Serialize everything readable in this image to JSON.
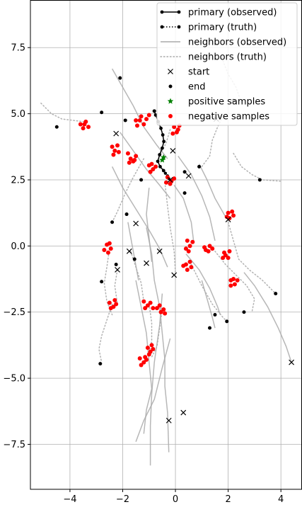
{
  "chart_data": {
    "type": "scatter",
    "title": "",
    "xlabel": "",
    "ylabel": "",
    "xlim": [
      -5.5,
      4.8
    ],
    "ylim": [
      -9.2,
      9.3
    ],
    "grid": true,
    "legend_position": "top-right",
    "x_ticks": [
      {
        "value": -4,
        "label": "−4"
      },
      {
        "value": -2,
        "label": "−2"
      },
      {
        "value": 0,
        "label": "0"
      },
      {
        "value": 2,
        "label": "2"
      },
      {
        "value": 4,
        "label": "4"
      }
    ],
    "y_ticks": [
      {
        "value": 7.5,
        "label": "7.5"
      },
      {
        "value": 5.0,
        "label": "5.0"
      },
      {
        "value": 2.5,
        "label": "2.5"
      },
      {
        "value": 0.0,
        "label": "0.0"
      },
      {
        "value": -2.5,
        "label": "−2.5"
      },
      {
        "value": -5.0,
        "label": "−5.0"
      },
      {
        "value": -7.5,
        "label": "−7.5"
      }
    ],
    "legend": [
      {
        "key": "primary_observed",
        "label": "primary (observed)"
      },
      {
        "key": "primary_truth",
        "label": "primary (truth)"
      },
      {
        "key": "neighbors_observed",
        "label": "neighbors (observed)"
      },
      {
        "key": "neighbors_truth",
        "label": "neighbors (truth)"
      },
      {
        "key": "start",
        "label": "start"
      },
      {
        "key": "end",
        "label": "end"
      },
      {
        "key": "positive",
        "label": "positive samples"
      },
      {
        "key": "negative",
        "label": "negative samples"
      }
    ],
    "colors": {
      "primary": "#000000",
      "neighbor": "#aaaaaa",
      "start": "#000000",
      "end": "#000000",
      "positive": "#008000",
      "negative": "#ff0000",
      "grid": "#b0b0b0"
    },
    "primary_observed": [
      [
        -0.8,
        5.1
      ],
      [
        -0.75,
        4.95
      ],
      [
        -0.65,
        4.7
      ],
      [
        -0.55,
        4.45
      ],
      [
        -0.48,
        4.2
      ],
      [
        -0.44,
        3.95
      ],
      [
        -0.5,
        3.7
      ],
      [
        -0.6,
        3.45
      ],
      [
        -0.67,
        3.2
      ],
      [
        -0.58,
        3.0
      ],
      [
        -0.45,
        2.85
      ]
    ],
    "primary_truth": [
      [
        -0.45,
        2.85
      ],
      [
        -0.38,
        2.75
      ],
      [
        -0.3,
        2.65
      ],
      [
        -0.25,
        2.55
      ]
    ],
    "neighbors_observed": [
      [
        [
          -2.4,
          6.7
        ],
        [
          -2.0,
          6.0
        ],
        [
          -1.6,
          5.3
        ],
        [
          -1.2,
          4.5
        ],
        [
          -0.7,
          3.8
        ],
        [
          -0.3,
          3.3
        ]
      ],
      [
        [
          -2.1,
          4.3
        ],
        [
          -1.6,
          3.6
        ],
        [
          -1.1,
          2.9
        ],
        [
          -0.6,
          2.3
        ],
        [
          -0.2,
          1.8
        ]
      ],
      [
        [
          -2.4,
          3.0
        ],
        [
          -2.0,
          2.2
        ],
        [
          -1.5,
          1.4
        ],
        [
          -1.0,
          0.6
        ],
        [
          -0.6,
          -0.1
        ],
        [
          -0.3,
          -0.8
        ]
      ],
      [
        [
          -1.0,
          2.2
        ],
        [
          -1.1,
          1.2
        ],
        [
          -1.0,
          0.3
        ],
        [
          -0.9,
          -0.6
        ]
      ],
      [
        [
          -1.8,
          0.9
        ],
        [
          -1.6,
          -0.2
        ],
        [
          -1.4,
          -1.3
        ]
      ],
      [
        [
          -0.05,
          2.3
        ],
        [
          0.3,
          1.8
        ],
        [
          0.6,
          0.9
        ],
        [
          0.7,
          0.1
        ]
      ],
      [
        [
          0.1,
          3.4
        ],
        [
          0.6,
          2.7
        ],
        [
          1.0,
          1.9
        ],
        [
          1.3,
          1.1
        ],
        [
          1.5,
          0.2
        ]
      ],
      [
        [
          0.9,
          3.1
        ],
        [
          1.2,
          2.5
        ],
        [
          1.5,
          1.8
        ],
        [
          1.9,
          1.1
        ]
      ],
      [
        [
          0.4,
          -0.3
        ],
        [
          0.9,
          -0.9
        ],
        [
          1.3,
          -1.6
        ],
        [
          1.6,
          -2.3
        ],
        [
          1.7,
          -2.6
        ]
      ],
      [
        [
          1.0,
          -1.3
        ],
        [
          1.2,
          -2.0
        ],
        [
          1.4,
          -2.7
        ],
        [
          1.5,
          -3.1
        ]
      ],
      [
        [
          2.6,
          -1.0
        ],
        [
          3.0,
          -1.5
        ],
        [
          3.5,
          -2.3
        ],
        [
          3.9,
          -3.1
        ],
        [
          4.2,
          -3.8
        ],
        [
          4.4,
          -4.4
        ]
      ],
      [
        [
          -1.1,
          0.7
        ],
        [
          -0.9,
          -0.3
        ],
        [
          -0.8,
          -1.3
        ],
        [
          -0.6,
          -2.3
        ],
        [
          -0.5,
          -3.3
        ],
        [
          -0.4,
          -4.3
        ],
        [
          -0.4,
          -5.3
        ],
        [
          -0.3,
          -6.3
        ],
        [
          -0.25,
          -7.8
        ]
      ],
      [
        [
          -1.5,
          -1.3
        ],
        [
          -1.3,
          -2.3
        ],
        [
          -1.1,
          -3.3
        ],
        [
          -1.0,
          -4.4
        ],
        [
          -0.9,
          -5.4
        ],
        [
          -1.1,
          -6.2
        ],
        [
          -1.2,
          -7.1
        ]
      ],
      [
        [
          -0.5,
          -1.8
        ],
        [
          -0.6,
          -3.0
        ],
        [
          -0.8,
          -4.4
        ],
        [
          -0.9,
          -5.6
        ],
        [
          -0.95,
          -6.8
        ],
        [
          -0.95,
          -8.3
        ]
      ],
      [
        [
          -0.2,
          -3.5
        ],
        [
          -0.5,
          -4.6
        ],
        [
          -0.8,
          -5.8
        ],
        [
          -1.2,
          -6.6
        ],
        [
          -1.5,
          -7.4
        ]
      ]
    ],
    "neighbors_truth": [
      [
        [
          -5.1,
          5.4
        ],
        [
          -4.7,
          5.0
        ],
        [
          -4.3,
          4.8
        ],
        [
          -3.9,
          4.75
        ],
        [
          -3.5,
          4.7
        ]
      ],
      [
        [
          1.8,
          7.0
        ],
        [
          2.0,
          6.5
        ],
        [
          2.3,
          6.0
        ],
        [
          2.5,
          5.4
        ]
      ],
      [
        [
          1.8,
          4.9
        ],
        [
          1.6,
          4.5
        ],
        [
          1.4,
          4.0
        ],
        [
          1.3,
          3.4
        ],
        [
          1.0,
          3.0
        ]
      ],
      [
        [
          2.2,
          3.5
        ],
        [
          2.5,
          3.0
        ],
        [
          2.9,
          2.7
        ],
        [
          3.3,
          2.5
        ],
        [
          4.0,
          2.45
        ]
      ],
      [
        [
          2.0,
          0.9
        ],
        [
          2.2,
          0.2
        ],
        [
          2.4,
          -0.5
        ],
        [
          2.8,
          -0.9
        ],
        [
          3.3,
          -1.3
        ],
        [
          3.8,
          -1.8
        ]
      ],
      [
        [
          1.5,
          -0.2
        ],
        [
          1.9,
          -0.7
        ],
        [
          2.3,
          -1.1
        ],
        [
          2.7,
          -1.5
        ],
        [
          3.0,
          -2.0
        ],
        [
          2.9,
          -2.5
        ]
      ],
      [
        [
          0.6,
          -0.7
        ],
        [
          1.0,
          -1.5
        ],
        [
          1.4,
          -2.2
        ],
        [
          1.8,
          -2.7
        ],
        [
          2.0,
          -2.9
        ]
      ],
      [
        [
          -0.4,
          2.4
        ],
        [
          -0.3,
          1.5
        ],
        [
          -0.2,
          0.7
        ],
        [
          -0.05,
          -0.2
        ],
        [
          0.0,
          -1.0
        ]
      ],
      [
        [
          -1.2,
          3.3
        ],
        [
          -1.6,
          2.6
        ],
        [
          -1.9,
          2.0
        ],
        [
          -2.2,
          1.3
        ],
        [
          -2.4,
          0.9
        ]
      ],
      [
        [
          -2.5,
          -0.1
        ],
        [
          -2.6,
          -0.8
        ],
        [
          -2.7,
          -1.4
        ],
        [
          -2.6,
          -2.1
        ],
        [
          -2.4,
          -2.6
        ]
      ],
      [
        [
          -2.4,
          -2.2
        ],
        [
          -2.6,
          -2.8
        ],
        [
          -2.8,
          -3.4
        ],
        [
          -2.9,
          -3.9
        ],
        [
          -2.8,
          -4.4
        ]
      ],
      [
        [
          -2.2,
          -0.9
        ],
        [
          -2.3,
          -1.5
        ],
        [
          -2.2,
          -2.2
        ]
      ],
      [
        [
          -1.7,
          -0.2
        ],
        [
          -1.5,
          -0.8
        ],
        [
          -1.3,
          -1.4
        ],
        [
          -1.2,
          -2.1
        ]
      ],
      [
        [
          -1.0,
          -2.2
        ],
        [
          -0.9,
          -2.9
        ],
        [
          -0.9,
          -3.6
        ],
        [
          -1.0,
          -4.0
        ]
      ],
      [
        [
          -0.5,
          -2.4
        ],
        [
          -0.6,
          -3.1
        ],
        [
          -0.7,
          -3.8
        ],
        [
          -0.9,
          -4.2
        ]
      ],
      [
        [
          -0.2,
          4.4
        ],
        [
          -0.35,
          3.9
        ],
        [
          -0.55,
          3.5
        ]
      ]
    ],
    "start_points": [
      [
        -2.25,
        4.25
      ],
      [
        -0.1,
        3.6
      ],
      [
        0.5,
        2.65
      ],
      [
        1.55,
        4.8
      ],
      [
        -0.2,
        2.5
      ],
      [
        2.0,
        1.0
      ],
      [
        -1.5,
        0.85
      ],
      [
        -0.6,
        -0.2
      ],
      [
        -1.75,
        -0.2
      ],
      [
        -2.2,
        -0.9
      ],
      [
        -1.1,
        -0.65
      ],
      [
        -0.05,
        -1.1
      ],
      [
        4.4,
        -4.4
      ],
      [
        0.3,
        -6.3
      ],
      [
        -0.25,
        -6.6
      ]
    ],
    "end_points": [
      [
        -4.5,
        4.5
      ],
      [
        -2.8,
        5.05
      ],
      [
        -2.1,
        6.35
      ],
      [
        -1.9,
        4.75
      ],
      [
        -0.8,
        5.1
      ],
      [
        0.35,
        2.8
      ],
      [
        0.9,
        3.0
      ],
      [
        2.2,
        5.5
      ],
      [
        3.2,
        2.5
      ],
      [
        -1.3,
        2.5
      ],
      [
        0.35,
        2.0
      ],
      [
        -1.85,
        1.2
      ],
      [
        -2.4,
        0.9
      ],
      [
        -1.55,
        -0.5
      ],
      [
        -2.25,
        -0.7
      ],
      [
        -2.8,
        -1.35
      ],
      [
        3.8,
        -1.8
      ],
      [
        2.6,
        -2.5
      ],
      [
        1.5,
        -2.6
      ],
      [
        1.95,
        -2.85
      ],
      [
        1.3,
        -3.1
      ],
      [
        -2.85,
        -4.45
      ]
    ],
    "positive_samples": [
      [
        -0.45,
        3.35
      ],
      [
        -0.5,
        3.25
      ]
    ],
    "negative_samples": [
      [
        -3.6,
        4.6
      ],
      [
        -3.4,
        4.7
      ],
      [
        -3.5,
        4.45
      ],
      [
        -3.3,
        4.5
      ],
      [
        -3.45,
        4.6
      ],
      [
        -1.5,
        4.75
      ],
      [
        -1.3,
        4.9
      ],
      [
        -1.1,
        4.8
      ],
      [
        -1.2,
        4.6
      ],
      [
        -1.45,
        4.55
      ],
      [
        -1.0,
        4.95
      ],
      [
        -1.35,
        4.75
      ],
      [
        -0.05,
        4.5
      ],
      [
        0.1,
        4.4
      ],
      [
        -0.1,
        4.25
      ],
      [
        0.15,
        4.55
      ],
      [
        0.05,
        4.3
      ],
      [
        -2.4,
        3.75
      ],
      [
        -2.2,
        3.8
      ],
      [
        -2.3,
        3.6
      ],
      [
        -2.15,
        3.55
      ],
      [
        -2.35,
        3.45
      ],
      [
        -1.8,
        3.5
      ],
      [
        -1.7,
        3.3
      ],
      [
        -1.5,
        3.4
      ],
      [
        -1.6,
        3.2
      ],
      [
        -1.75,
        3.15
      ],
      [
        -1.55,
        3.25
      ],
      [
        -1.0,
        3.05
      ],
      [
        -0.85,
        2.9
      ],
      [
        -0.95,
        2.8
      ],
      [
        -0.75,
        3.0
      ],
      [
        -0.9,
        3.1
      ],
      [
        -0.3,
        2.6
      ],
      [
        -0.15,
        2.45
      ],
      [
        -0.35,
        2.4
      ],
      [
        -0.2,
        2.35
      ],
      [
        -0.05,
        2.55
      ],
      [
        2.0,
        1.25
      ],
      [
        2.2,
        1.15
      ],
      [
        2.05,
        1.05
      ],
      [
        2.15,
        1.3
      ],
      [
        1.95,
        1.1
      ],
      [
        -2.6,
        0.05
      ],
      [
        -2.45,
        -0.1
      ],
      [
        -2.55,
        -0.25
      ],
      [
        -2.7,
        -0.15
      ],
      [
        -2.5,
        0.1
      ],
      [
        0.45,
        0.2
      ],
      [
        0.55,
        0.0
      ],
      [
        0.4,
        -0.1
      ],
      [
        0.65,
        0.15
      ],
      [
        0.5,
        -0.2
      ],
      [
        1.1,
        -0.05
      ],
      [
        1.25,
        -0.2
      ],
      [
        1.3,
        0.0
      ],
      [
        1.15,
        -0.15
      ],
      [
        1.4,
        -0.1
      ],
      [
        1.85,
        -0.25
      ],
      [
        2.0,
        -0.45
      ],
      [
        1.9,
        -0.35
      ],
      [
        2.05,
        -0.2
      ],
      [
        1.8,
        -0.45
      ],
      [
        0.3,
        -0.75
      ],
      [
        0.45,
        -0.9
      ],
      [
        0.55,
        -0.6
      ],
      [
        0.4,
        -0.7
      ],
      [
        0.6,
        -0.8
      ],
      [
        2.1,
        -1.3
      ],
      [
        2.25,
        -1.45
      ],
      [
        2.1,
        -1.5
      ],
      [
        2.35,
        -1.3
      ],
      [
        2.2,
        -1.25
      ],
      [
        -2.5,
        -2.15
      ],
      [
        -2.35,
        -2.3
      ],
      [
        -2.25,
        -2.2
      ],
      [
        -2.45,
        -2.35
      ],
      [
        -2.3,
        -2.05
      ],
      [
        -1.2,
        -2.1
      ],
      [
        -1.05,
        -2.25
      ],
      [
        -0.95,
        -2.15
      ],
      [
        -1.15,
        -2.35
      ],
      [
        -0.85,
        -2.35
      ],
      [
        -0.7,
        -2.35
      ],
      [
        -0.55,
        -2.5
      ],
      [
        -0.45,
        -2.4
      ],
      [
        -0.6,
        -2.25
      ],
      [
        -0.4,
        -2.55
      ],
      [
        -1.05,
        -3.85
      ],
      [
        -0.95,
        -4.0
      ],
      [
        -0.85,
        -3.9
      ],
      [
        -1.0,
        -4.1
      ],
      [
        -0.9,
        -3.75
      ],
      [
        -1.35,
        -4.25
      ],
      [
        -1.2,
        -4.4
      ],
      [
        -1.1,
        -4.3
      ],
      [
        -1.3,
        -4.5
      ],
      [
        -1.15,
        -4.2
      ]
    ]
  }
}
